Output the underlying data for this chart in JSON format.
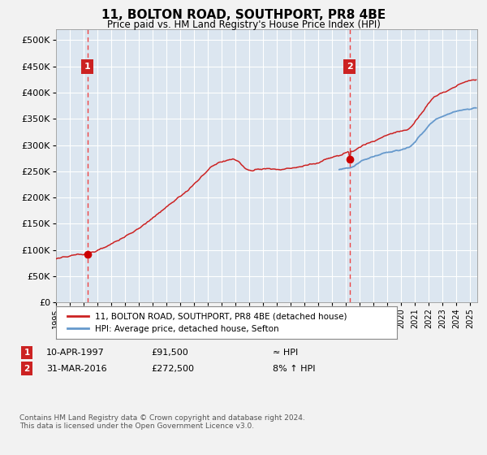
{
  "title": "11, BOLTON ROAD, SOUTHPORT, PR8 4BE",
  "subtitle": "Price paid vs. HM Land Registry's House Price Index (HPI)",
  "hpi_label": "HPI: Average price, detached house, Sefton",
  "price_label": "11, BOLTON ROAD, SOUTHPORT, PR8 4BE (detached house)",
  "sale1_date": "10-APR-1997",
  "sale1_price": 91500,
  "sale1_year": 1997.27,
  "sale2_date": "31-MAR-2016",
  "sale2_price": 272500,
  "sale2_year": 2016.25,
  "sale2_hpi_pct": "8% ↑ HPI",
  "sale1_hpi_txt": "≈ HPI",
  "ylim_min": 0,
  "ylim_max": 520000,
  "xlim_min": 1995.0,
  "xlim_max": 2025.5,
  "yticks": [
    0,
    50000,
    100000,
    150000,
    200000,
    250000,
    300000,
    350000,
    400000,
    450000,
    500000
  ],
  "ytick_labels": [
    "£0",
    "£50K",
    "£100K",
    "£150K",
    "£200K",
    "£250K",
    "£300K",
    "£350K",
    "£400K",
    "£450K",
    "£500K"
  ],
  "xticks": [
    1995,
    1996,
    1997,
    1998,
    1999,
    2000,
    2001,
    2002,
    2003,
    2004,
    2005,
    2006,
    2007,
    2008,
    2009,
    2010,
    2011,
    2012,
    2013,
    2014,
    2015,
    2016,
    2017,
    2018,
    2019,
    2020,
    2021,
    2022,
    2023,
    2024,
    2025
  ],
  "bg_color": "#dce6f0",
  "fig_bg_color": "#f2f2f2",
  "line_color_hpi": "#6699cc",
  "line_color_price": "#cc2222",
  "marker_color": "#cc0000",
  "vline_color": "#ee4444",
  "annotation_box_color": "#cc2222",
  "grid_color": "#ffffff",
  "footer_text": "Contains HM Land Registry data © Crown copyright and database right 2024.\nThis data is licensed under the Open Government Licence v3.0."
}
